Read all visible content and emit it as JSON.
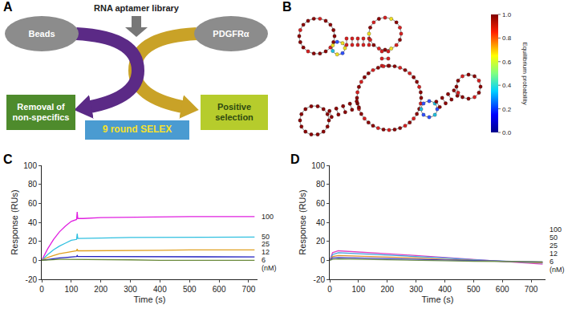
{
  "panel_labels": [
    "A",
    "B",
    "C",
    "D"
  ],
  "diagram": {
    "library": "RNA aptamer library",
    "left_target": "Beads",
    "right_target": "PDGFRα",
    "left_outcome": "Removal of non-specifics",
    "right_outcome": "Positive selection",
    "cycle": "9 round SELEX"
  },
  "structure": {
    "colorbar": {
      "title": "Equilibrium probability",
      "range": [
        0,
        1
      ],
      "ticks": [
        {
          "value": 0,
          "label": "0.0"
        },
        {
          "value": 0.2,
          "label": "0.2"
        },
        {
          "value": 0.4,
          "label": "0.4"
        },
        {
          "value": 0.6,
          "label": "0.6"
        },
        {
          "value": 0.8,
          "label": "0.8"
        },
        {
          "value": 1,
          "label": "1.0"
        }
      ]
    }
  },
  "chart_data": [
    {
      "type": "line",
      "xlabel": "Time (s)",
      "ylabel": "Response (RUs)",
      "xlim": [
        0,
        730
      ],
      "ylim": [
        -20,
        100
      ],
      "xticks": [
        0,
        100,
        200,
        300,
        400,
        500,
        600,
        700
      ],
      "yticks": [
        -20,
        0,
        20,
        40,
        60,
        80,
        100
      ],
      "grid": false,
      "annotations": [
        "(nM)"
      ],
      "x": [
        0,
        20,
        40,
        60,
        80,
        100,
        118,
        120,
        122,
        140,
        200,
        300,
        400,
        500,
        600,
        700,
        720
      ],
      "series": [
        {
          "name": "100",
          "color": "#e020e0",
          "values": [
            0,
            12,
            22,
            30,
            36,
            41,
            43,
            51,
            44,
            44,
            45,
            45.5,
            46,
            46,
            46,
            46,
            46
          ]
        },
        {
          "name": "50",
          "color": "#30c0e0",
          "values": [
            0,
            6,
            11,
            15,
            18,
            21,
            22,
            28,
            23,
            23,
            23.5,
            24,
            24,
            24,
            24.5,
            24.5,
            24.5
          ]
        },
        {
          "name": "25",
          "color": "#e0a020",
          "values": [
            0,
            3,
            5,
            7,
            8,
            9,
            10,
            12,
            10,
            10,
            10,
            10.5,
            10.5,
            11,
            11,
            11,
            11
          ]
        },
        {
          "name": "12",
          "color": "#2020c0",
          "values": [
            0,
            1,
            2,
            2.5,
            3,
            3.5,
            4,
            5,
            4,
            4,
            4,
            4,
            3.5,
            3.5,
            3.5,
            3.5,
            3.5
          ]
        },
        {
          "name": "6",
          "color": "#6a8a3a",
          "values": [
            0,
            0.5,
            1,
            1,
            1,
            1,
            1,
            1,
            1,
            1,
            0.5,
            0.5,
            0,
            0,
            0,
            0,
            0
          ]
        }
      ]
    },
    {
      "type": "line",
      "xlabel": "Time (s)",
      "ylabel": "Response (RUs)",
      "xlim": [
        0,
        750
      ],
      "ylim": [
        -20,
        100
      ],
      "xticks": [
        0,
        100,
        200,
        300,
        400,
        500,
        600,
        700
      ],
      "yticks": [
        -20,
        0,
        20,
        40,
        60,
        80,
        100
      ],
      "grid": false,
      "annotations": [
        "(nM)"
      ],
      "x": [
        0,
        10,
        30,
        100,
        200,
        300,
        400,
        500,
        600,
        700,
        740
      ],
      "series": [
        {
          "name": "100",
          "color": "#e040c0",
          "values": [
            0,
            8,
            10,
            9,
            7,
            5,
            3,
            1,
            -1,
            -3,
            -4
          ]
        },
        {
          "name": "50",
          "color": "#40a0e0",
          "values": [
            0,
            6,
            8,
            7,
            5.5,
            4,
            2.5,
            0.5,
            -1,
            -2.5,
            -3
          ]
        },
        {
          "name": "25",
          "color": "#e09030",
          "values": [
            0,
            4,
            5,
            4.5,
            3.5,
            2.5,
            1,
            0,
            -1,
            -2,
            -2.5
          ]
        },
        {
          "name": "12",
          "color": "#4040c0",
          "values": [
            0,
            2.5,
            3,
            2.5,
            2,
            1,
            0,
            -0.5,
            -1,
            -1.5,
            -2
          ]
        },
        {
          "name": "6",
          "color": "#709050",
          "values": [
            0,
            1,
            1.5,
            1,
            0.5,
            0,
            -0.5,
            -1,
            -1,
            -1.5,
            -1.5
          ]
        }
      ]
    }
  ]
}
